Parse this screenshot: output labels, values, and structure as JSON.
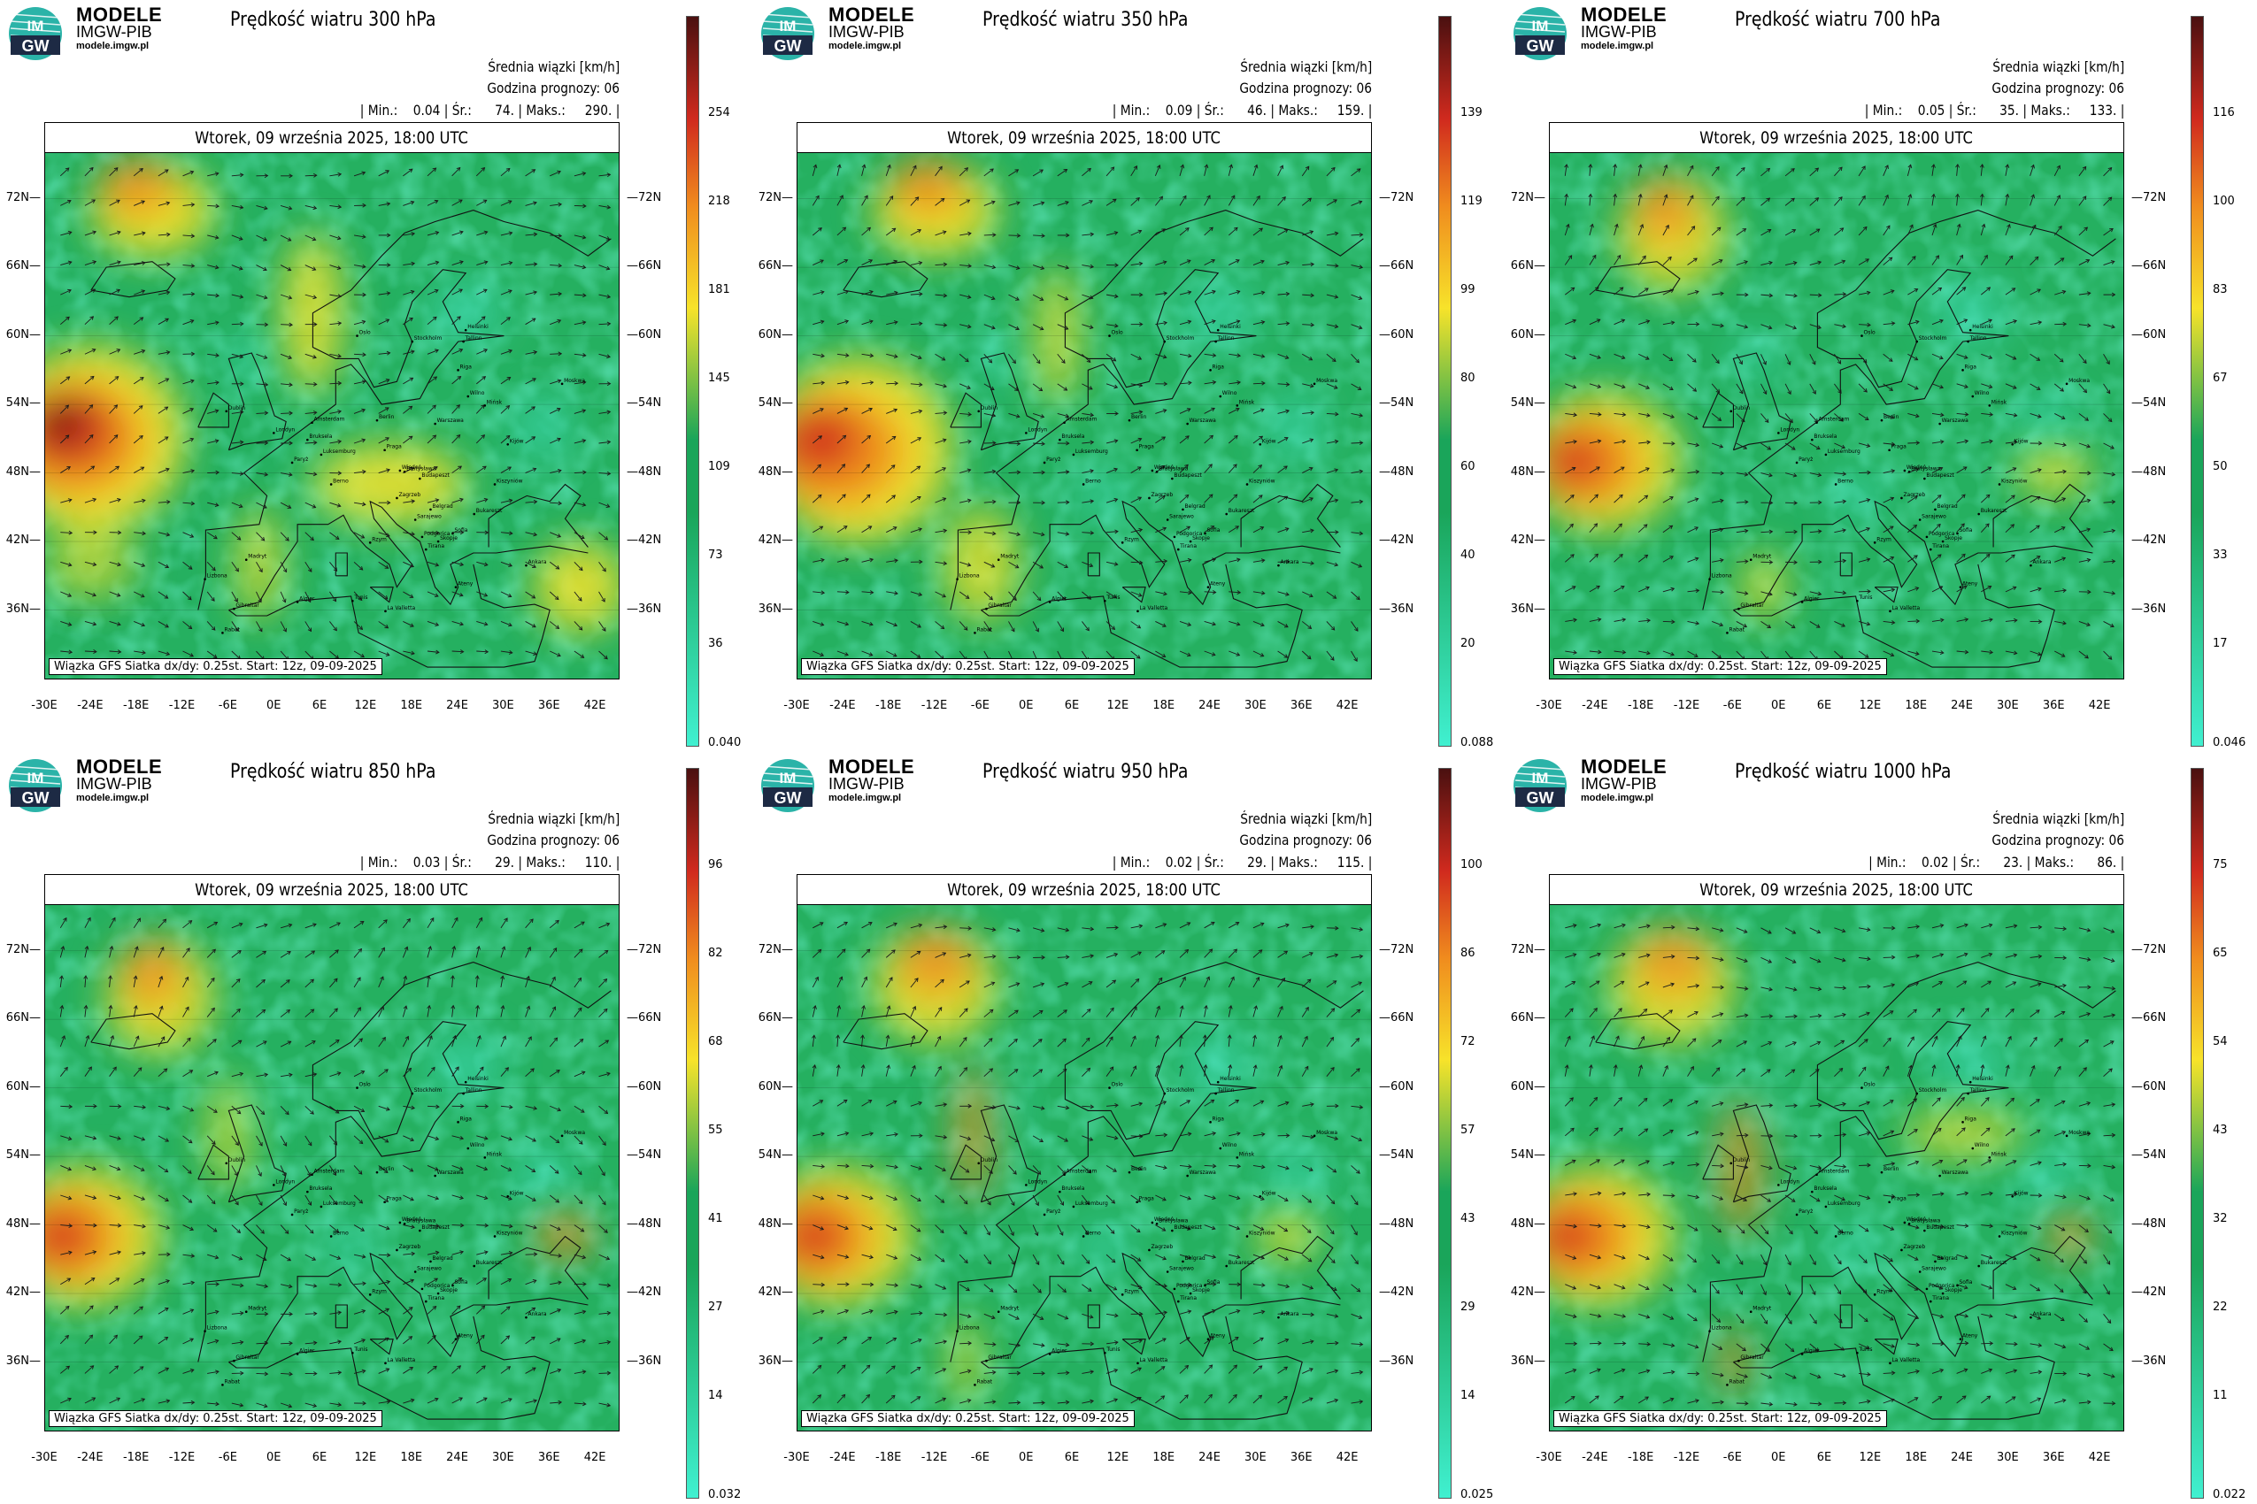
{
  "logo": {
    "text_top": "IM",
    "text_bottom": "GW",
    "word": "MODELE",
    "sub": "IMGW-PIB",
    "url": "modele.imgw.pl"
  },
  "info_line1": "Średnia wiązki [km/h]",
  "info_line2": "Godzina prognozy: 06",
  "date_bar": "Wtorek, 09 września 2025, 18:00 UTC",
  "footnote": "Wiązka GFS Siatka dx/dy: 0.25st. Start: 12z, 09-09-2025",
  "lat_labels": [
    "72N",
    "66N",
    "60N",
    "54N",
    "48N",
    "42N",
    "36N"
  ],
  "lon_labels": [
    "-30E",
    "-24E",
    "-18E",
    "-12E",
    "-6E",
    "0E",
    "6E",
    "12E",
    "18E",
    "24E",
    "30E",
    "36E",
    "42E"
  ],
  "colors": {
    "low": "#40f0d0",
    "green": "#1aa55a",
    "yellow": "#f7e32a",
    "orange": "#f08c1e",
    "red": "#d02a1e",
    "darkred": "#4a1010"
  },
  "panels": [
    {
      "title": "Prędkość wiatru 300 hPa",
      "stats": "| Min.:    0.04 | Śr.:      74. | Maks.:     290. |",
      "cbar": [
        "254",
        "218",
        "181",
        "145",
        "109",
        "73",
        "36",
        "0.040"
      ]
    },
    {
      "title": "Prędkość wiatru 350 hPa",
      "stats": "| Min.:    0.09 | Śr.:      46. | Maks.:     159. |",
      "cbar": [
        "139",
        "119",
        "99",
        "80",
        "60",
        "40",
        "20",
        "0.088"
      ]
    },
    {
      "title": "Prędkość wiatru 700 hPa",
      "stats": "| Min.:    0.05 | Śr.:      35. | Maks.:     133. |",
      "cbar": [
        "116",
        "100",
        "83",
        "67",
        "50",
        "33",
        "17",
        "0.046"
      ]
    },
    {
      "title": "Prędkość wiatru 850 hPa",
      "stats": "| Min.:    0.03 | Śr.:      29. | Maks.:     110. |",
      "cbar": [
        "96",
        "82",
        "68",
        "55",
        "41",
        "27",
        "14",
        "0.032"
      ]
    },
    {
      "title": "Prędkość wiatru 950 hPa",
      "stats": "| Min.:    0.02 | Śr.:      29. | Maks.:     115. |",
      "cbar": [
        "100",
        "86",
        "72",
        "57",
        "43",
        "29",
        "14",
        "0.025"
      ]
    },
    {
      "title": "Prędkość wiatru 1000 hPa",
      "stats": "| Min.:    0.02 | Śr.:      23. | Maks.:      86. |",
      "cbar": [
        "75",
        "65",
        "54",
        "43",
        "32",
        "22",
        "11",
        "0.022"
      ]
    }
  ]
}
